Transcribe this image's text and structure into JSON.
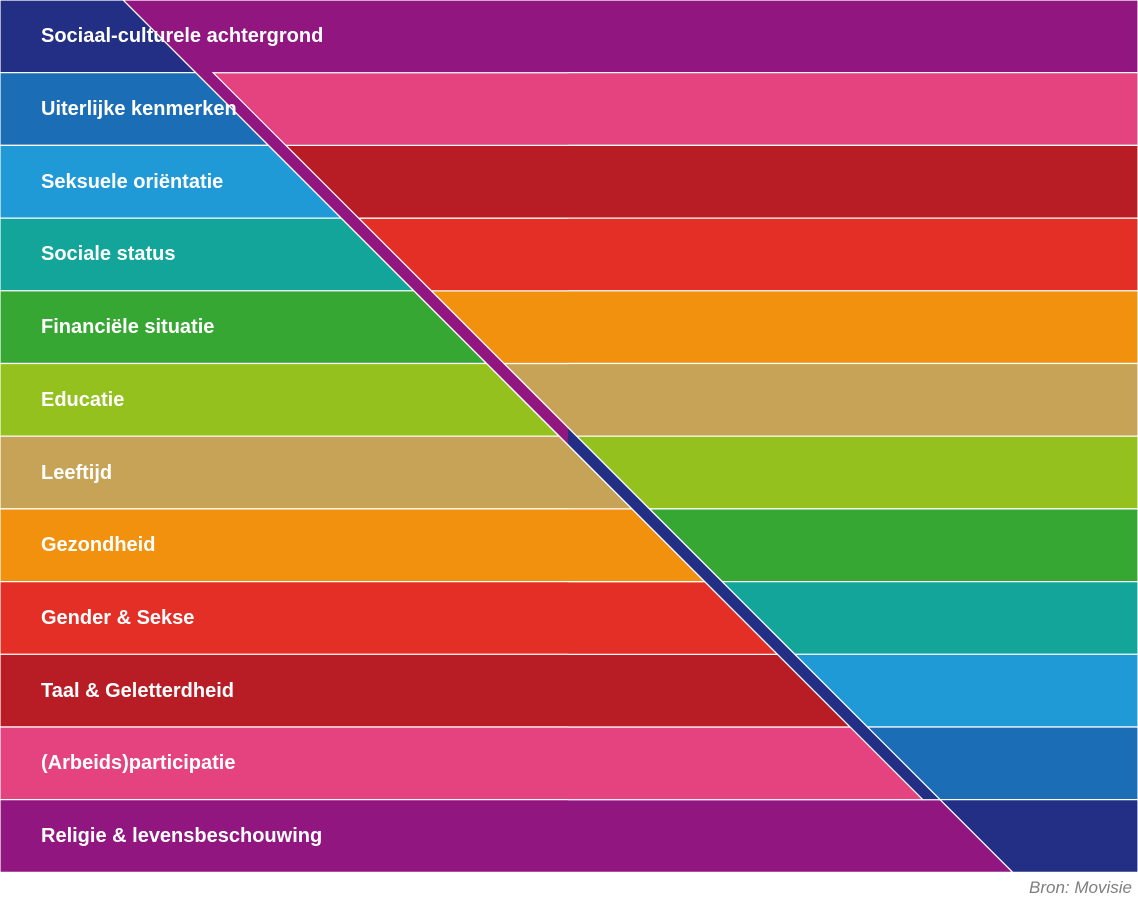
{
  "bands": [
    {
      "label": "Sociaal-culturele achtergrond",
      "color": "#232f85"
    },
    {
      "label": "Uiterlijke kenmerken",
      "color": "#1b6db5"
    },
    {
      "label": "Seksuele oriëntatie",
      "color": "#209ad7"
    },
    {
      "label": "Sociale status",
      "color": "#13a59a"
    },
    {
      "label": "Financiële situatie",
      "color": "#37a733"
    },
    {
      "label": "Educatie",
      "color": "#94c11e"
    },
    {
      "label": "Leeftijd",
      "color": "#c6a356"
    },
    {
      "label": "Gezondheid",
      "color": "#f2910e"
    },
    {
      "label": " Gender & Sekse",
      "color": "#e42f27"
    },
    {
      "label": "Taal & Geletterdheid",
      "color": "#b81d25"
    },
    {
      "label": "(Arbeids)participatie",
      "color": "#e4437f"
    },
    {
      "label": "Religie & levensbeschouwing",
      "color": "#921680"
    }
  ],
  "source": "Bron: Movisie"
}
